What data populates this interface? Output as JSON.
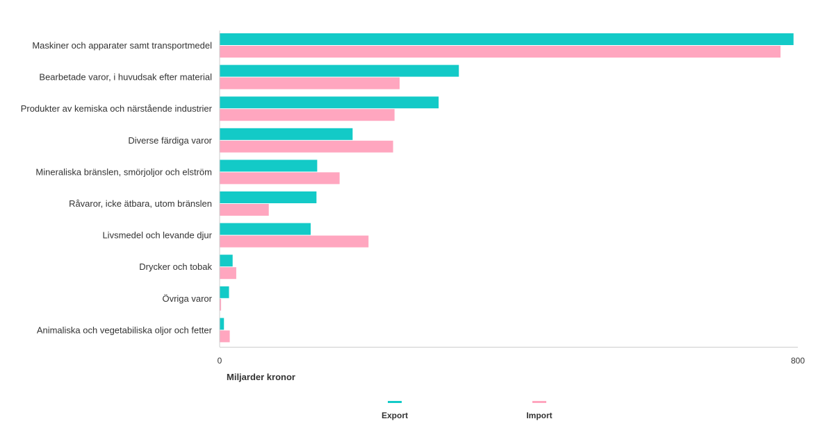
{
  "chart_data": {
    "type": "bar",
    "orientation": "horizontal",
    "categories": [
      "Maskiner och apparater samt transportmedel",
      "Bearbetade varor, i huvudsak efter material",
      "Produkter av kemiska och närstående industrier",
      "Diverse färdiga varor",
      "Mineraliska bränslen, smörjoljor och elström",
      "Råvaror, icke ätbara, utom bränslen",
      "Livsmedel och levande djur",
      "Drycker och tobak",
      "Övriga varor",
      "Animaliska och vegetabiliska oljor och fetter"
    ],
    "series": [
      {
        "name": "Export",
        "color": "#13cac7",
        "values": [
          794,
          331,
          303,
          184,
          135,
          134,
          126,
          18,
          13,
          6
        ]
      },
      {
        "name": "Import",
        "color": "#ffa6bf",
        "values": [
          776,
          249,
          242,
          240,
          166,
          68,
          206,
          23,
          2,
          14
        ]
      }
    ],
    "xlim": [
      0,
      800
    ],
    "xticks": [
      "0",
      "800"
    ],
    "xlabel": "Miljarder kronor",
    "legend_position": "bottom",
    "grid": false
  }
}
